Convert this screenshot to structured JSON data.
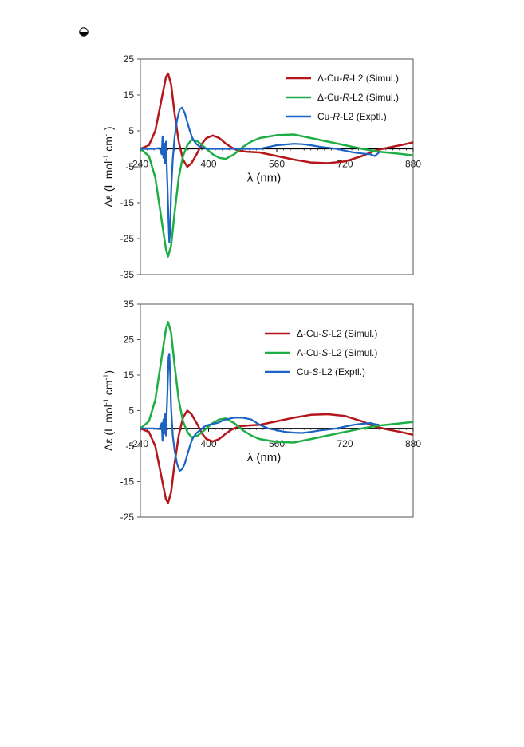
{
  "page": {
    "mark_icon": "circle-dot-icon"
  },
  "colors": {
    "red": "#b5161b",
    "green": "#1fae45",
    "blue": "#1b63c4",
    "axis": "#000000",
    "frame": "#555555"
  },
  "chart_data": [
    {
      "type": "line",
      "xlabel": "λ (nm)",
      "ylabel": "Δε (L mol-1 cm-1)",
      "xlim": [
        240,
        880
      ],
      "ylim": [
        -35,
        25
      ],
      "xticks": [
        240,
        400,
        560,
        720,
        880
      ],
      "yticks": [
        -35,
        -25,
        -15,
        -5,
        5,
        15,
        25
      ],
      "legend": "top-right",
      "series": [
        {
          "name": "Λ-Cu-R-L2 (Simul.)",
          "color": "red",
          "x": [
            240,
            260,
            275,
            290,
            300,
            305,
            312,
            320,
            330,
            340,
            350,
            360,
            372,
            385,
            395,
            410,
            425,
            440,
            455,
            470,
            490,
            520,
            560,
            600,
            640,
            680,
            720,
            760,
            790,
            820,
            850,
            880
          ],
          "y": [
            0,
            1,
            5,
            14,
            20,
            21,
            18,
            10,
            2,
            -3,
            -5,
            -4,
            -1.5,
            1.5,
            3,
            3.7,
            3,
            1.5,
            0.3,
            -0.5,
            -0.8,
            -1,
            -2,
            -3,
            -3.8,
            -4,
            -3.5,
            -2,
            -0.5,
            0.3,
            1,
            1.8
          ]
        },
        {
          "name": "Δ-Cu-R-L2 (Simul.)",
          "color": "green",
          "x": [
            240,
            260,
            275,
            290,
            300,
            305,
            312,
            320,
            330,
            340,
            350,
            360,
            375,
            390,
            410,
            425,
            440,
            460,
            480,
            500,
            520,
            560,
            600,
            640,
            680,
            720,
            760,
            800,
            840,
            880
          ],
          "y": [
            0,
            -2,
            -8,
            -20,
            -28,
            -30,
            -27,
            -18,
            -8,
            -2,
            1,
            2.5,
            2,
            0.5,
            -1.5,
            -2.5,
            -2.8,
            -1.5,
            0.5,
            2,
            3,
            3.8,
            4,
            3,
            2,
            1,
            0,
            -0.8,
            -1.3,
            -1.8
          ]
        },
        {
          "name": "Cu-R-L2 (Exptl.)",
          "color": "blue",
          "x": [
            240,
            270,
            285,
            290,
            292,
            294,
            296,
            298,
            300,
            302,
            304,
            306,
            308,
            310,
            312,
            316,
            320,
            326,
            332,
            338,
            344,
            350,
            356,
            362,
            370,
            380,
            390,
            400,
            420,
            440,
            460,
            480,
            500,
            520,
            540,
            560,
            580,
            600,
            620,
            640,
            660,
            680,
            700,
            720,
            740,
            760,
            780,
            790,
            800
          ],
          "y": [
            0,
            0,
            0.2,
            -1.5,
            3.5,
            -2.5,
            1.5,
            -4,
            2,
            -5,
            -12,
            -20,
            -26,
            -22,
            -12,
            -3,
            3,
            8,
            11,
            11.5,
            10,
            7.5,
            5,
            3,
            1.5,
            0.5,
            0.2,
            0,
            0,
            0,
            0,
            0,
            0,
            0,
            0.5,
            1,
            1.2,
            1.4,
            1.3,
            1,
            0.6,
            0.3,
            0,
            -0.5,
            -1,
            -1.3,
            -1.5,
            -2,
            -1
          ]
        }
      ]
    },
    {
      "type": "line",
      "xlabel": "λ (nm)",
      "ylabel": "Δε (L mol-1 cm-1)",
      "xlim": [
        240,
        880
      ],
      "ylim": [
        -25,
        35
      ],
      "xticks": [
        240,
        400,
        560,
        720,
        880
      ],
      "yticks": [
        -25,
        -15,
        -5,
        5,
        15,
        25,
        35
      ],
      "legend": "top-right",
      "series": [
        {
          "name": "Δ-Cu-S-L2 (Simul.)",
          "color": "red",
          "x": [
            240,
            260,
            275,
            290,
            300,
            305,
            312,
            320,
            330,
            340,
            350,
            360,
            372,
            385,
            395,
            410,
            425,
            440,
            455,
            470,
            490,
            520,
            560,
            600,
            640,
            680,
            720,
            760,
            790,
            820,
            850,
            880
          ],
          "y": [
            0,
            -1,
            -5,
            -14,
            -20,
            -21,
            -18,
            -10,
            -2,
            3,
            5,
            4,
            1.5,
            -1.5,
            -3,
            -3.7,
            -3,
            -1.5,
            -0.3,
            0.5,
            0.8,
            1,
            2,
            3,
            3.8,
            4,
            3.5,
            2,
            0.5,
            -0.3,
            -1,
            -1.8
          ]
        },
        {
          "name": "Λ-Cu-S-L2 (Simul.)",
          "color": "green",
          "x": [
            240,
            260,
            275,
            290,
            300,
            305,
            312,
            320,
            330,
            340,
            350,
            360,
            375,
            390,
            410,
            425,
            440,
            460,
            480,
            500,
            520,
            560,
            600,
            640,
            680,
            720,
            760,
            800,
            840,
            880
          ],
          "y": [
            0,
            2,
            8,
            20,
            28,
            30,
            27,
            18,
            8,
            2,
            -1,
            -2.5,
            -2,
            -0.5,
            1.5,
            2.5,
            2.8,
            1.5,
            -0.5,
            -2,
            -3,
            -3.8,
            -4,
            -3,
            -2,
            -1,
            0,
            0.8,
            1.3,
            1.8
          ]
        },
        {
          "name": "Cu-S-L2 (Exptl.)",
          "color": "blue",
          "x": [
            240,
            270,
            285,
            290,
            292,
            294,
            296,
            298,
            300,
            302,
            304,
            306,
            308,
            310,
            312,
            316,
            320,
            326,
            332,
            338,
            344,
            350,
            356,
            362,
            370,
            380,
            390,
            400,
            420,
            440,
            460,
            480,
            500,
            520,
            540,
            560,
            580,
            600,
            620,
            640,
            660,
            680,
            700,
            720,
            740,
            760,
            780,
            790,
            800
          ],
          "y": [
            0,
            0,
            -0.2,
            1.5,
            -3.5,
            2.5,
            -1.5,
            4,
            -2,
            5,
            12,
            20,
            21,
            15,
            6,
            -2,
            -6,
            -10,
            -12,
            -11.5,
            -10,
            -7.5,
            -5,
            -3,
            -1.5,
            -0.5,
            0.5,
            1,
            1.5,
            2.5,
            3,
            3,
            2.5,
            1,
            0,
            -0.5,
            -1,
            -1.2,
            -1.3,
            -1,
            -0.6,
            -0.3,
            0,
            0.5,
            1,
            1.3,
            1.5,
            1.2,
            1
          ]
        }
      ]
    }
  ]
}
